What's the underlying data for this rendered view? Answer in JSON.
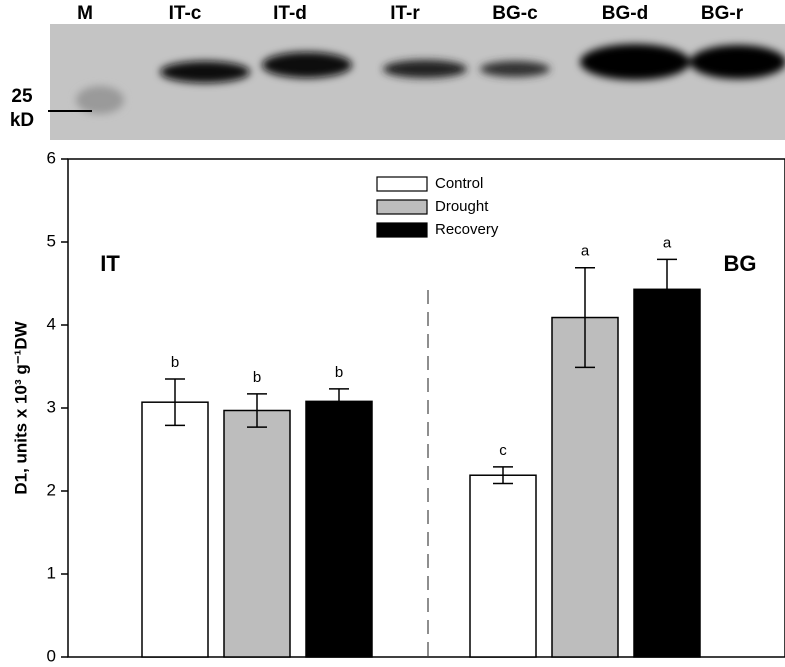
{
  "blot": {
    "lanes": [
      "M",
      "IT-c",
      "IT-d",
      "IT-r",
      "BG-c",
      "BG-d",
      "BG-r"
    ],
    "marker": [
      "25",
      "kD"
    ]
  },
  "chart_data": {
    "type": "bar",
    "ylabel": "D1, units x 10³ g⁻¹DW",
    "categories": [
      "IT",
      "BG"
    ],
    "series": [
      {
        "name": "Control",
        "color": "#ffffff",
        "values": [
          3.07,
          2.19
        ],
        "errors": [
          0.28,
          0.1
        ],
        "letters": [
          "b",
          "c"
        ]
      },
      {
        "name": "Drought",
        "color": "#bdbdbd",
        "values": [
          2.97,
          4.09
        ],
        "errors": [
          0.2,
          0.6
        ],
        "letters": [
          "b",
          "a"
        ]
      },
      {
        "name": "Recovery",
        "color": "#000000",
        "values": [
          3.08,
          4.43
        ],
        "errors": [
          0.15,
          0.36
        ],
        "letters": [
          "b",
          "a"
        ]
      }
    ],
    "ylim": [
      0,
      6
    ],
    "yticks": [
      0,
      1,
      2,
      3,
      4,
      5,
      6
    ],
    "legend": "top-center"
  }
}
